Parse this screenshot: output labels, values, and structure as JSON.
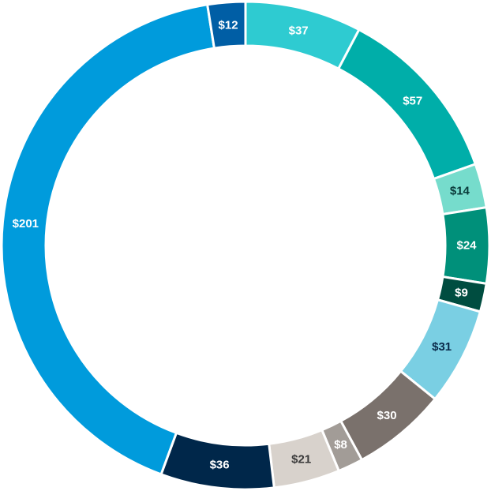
{
  "chart_data": {
    "type": "pie",
    "variant": "donut",
    "start": "top",
    "direction": "clockwise",
    "slices": [
      {
        "label": "$37",
        "value": 37,
        "color": "#2ecbd1",
        "label_color": "#ffffff"
      },
      {
        "label": "$57",
        "value": 57,
        "color": "#00aea9",
        "label_color": "#ffffff"
      },
      {
        "label": "$14",
        "value": 14,
        "color": "#76dccc",
        "label_color": "#0a3a3a"
      },
      {
        "label": "$24",
        "value": 24,
        "color": "#00907a",
        "label_color": "#ffffff"
      },
      {
        "label": "$9",
        "value": 9,
        "color": "#004d40",
        "label_color": "#ffffff"
      },
      {
        "label": "$31",
        "value": 31,
        "color": "#7acfe3",
        "label_color": "#0a2a4a"
      },
      {
        "label": "$30",
        "value": 30,
        "color": "#7a716c",
        "label_color": "#ffffff"
      },
      {
        "label": "$8",
        "value": 8,
        "color": "#a29c97",
        "label_color": "#ffffff"
      },
      {
        "label": "$21",
        "value": 21,
        "color": "#d8d2cc",
        "label_color": "#3a3a3a"
      },
      {
        "label": "$36",
        "value": 36,
        "color": "#00274a",
        "label_color": "#ffffff"
      },
      {
        "label": "$201",
        "value": 201,
        "color": "#009bdc",
        "label_color": "#ffffff"
      },
      {
        "label": "$12",
        "value": 12,
        "color": "#005ea5",
        "label_color": "#ffffff"
      }
    ]
  }
}
